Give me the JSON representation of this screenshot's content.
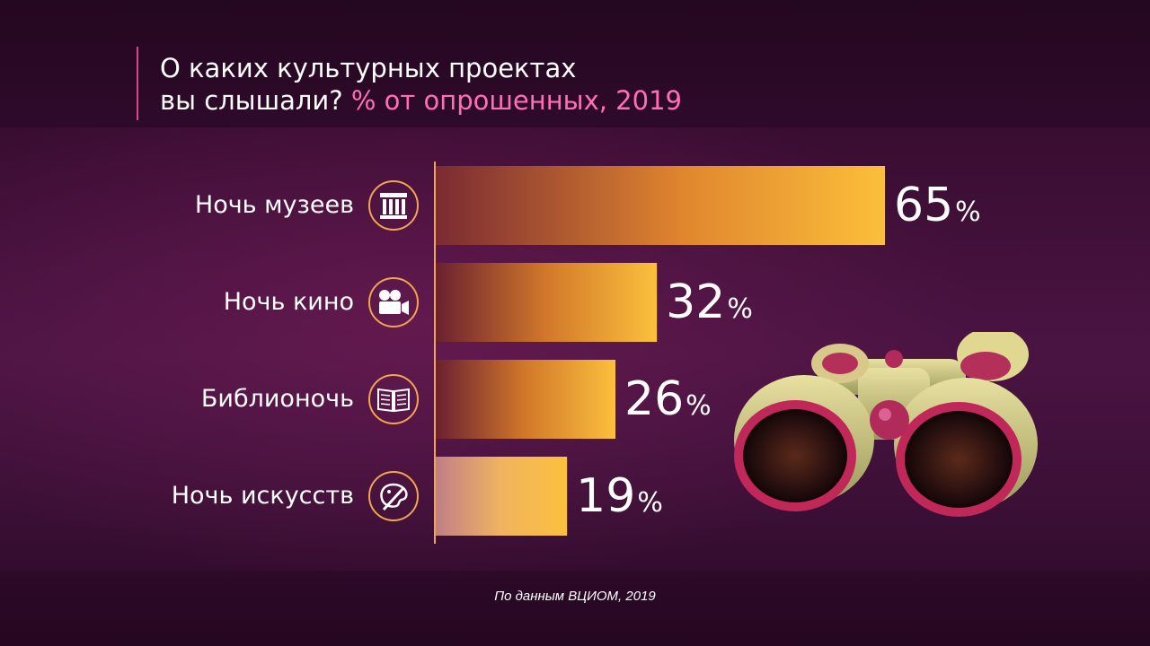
{
  "title": {
    "line1": "О каких культурных проектах",
    "line2_main": "вы слышали?",
    "line2_highlight": "% от опрошенных, 2019"
  },
  "chart_data": {
    "type": "bar",
    "orientation": "horizontal",
    "categories": [
      "Ночь музеев",
      "Ночь кино",
      "Библионочь",
      "Ночь искусств"
    ],
    "values": [
      65,
      32,
      26,
      19
    ],
    "value_suffix": "%",
    "icons": [
      "museum-column-icon",
      "film-camera-icon",
      "open-book-icon",
      "art-palette-icon"
    ],
    "xlim": [
      0,
      65
    ],
    "bar_colors": {
      "start": "#7a2a33",
      "end": "#fbbf3a",
      "highlight": "#fae06a"
    }
  },
  "source": "По данным ВЦИОМ, 2019"
}
